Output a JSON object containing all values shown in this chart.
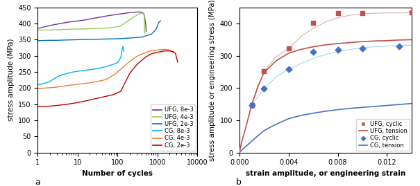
{
  "panel_a": {
    "xlabel": "Number of cycles",
    "ylabel": "stress amplitude (MPa)",
    "label_a": "a",
    "xlim": [
      1,
      10000
    ],
    "ylim": [
      0,
      450
    ],
    "yticks": [
      0,
      50,
      100,
      150,
      200,
      250,
      300,
      350,
      400,
      450
    ],
    "xtick_labels": [
      "1",
      "10",
      "100",
      "1000",
      "10000"
    ],
    "xtick_vals": [
      1,
      10,
      100,
      1000,
      10000
    ],
    "curves": [
      {
        "label": "UFG, 8e-3",
        "color": "#7030a0",
        "x": [
          1,
          1.5,
          2,
          3,
          4,
          5,
          7,
          10,
          15,
          20,
          30,
          50,
          80,
          120,
          180,
          250,
          350,
          420,
          460,
          490,
          510,
          515,
          518
        ],
        "y": [
          385,
          390,
          394,
          398,
          401,
          403,
          406,
          408,
          411,
          414,
          418,
          423,
          427,
          430,
          433,
          435,
          436,
          435,
          428,
          410,
          395,
          385,
          375
        ]
      },
      {
        "label": "UFG, 4e-3",
        "color": "#92d050",
        "x": [
          1,
          1.5,
          2,
          3,
          5,
          8,
          12,
          20,
          30,
          50,
          80,
          120,
          180,
          250,
          350,
          420,
          450,
          465,
          470,
          475
        ],
        "y": [
          380,
          380,
          380,
          381,
          382,
          383,
          383,
          384,
          385,
          386,
          388,
          393,
          408,
          420,
          430,
          433,
          433,
          430,
          395,
          370
        ]
      },
      {
        "label": "UFG, 2e-3",
        "color": "#0070c0",
        "x": [
          1,
          2,
          3,
          5,
          10,
          20,
          50,
          100,
          200,
          400,
          700,
          900,
          1000,
          1050,
          1100,
          1150,
          1200
        ],
        "y": [
          347,
          348,
          348,
          349,
          350,
          351,
          352,
          353,
          355,
          358,
          367,
          380,
          393,
          400,
          405,
          407,
          408
        ]
      },
      {
        "label": "CG, 8e-3",
        "color": "#00b0f0",
        "x": [
          1,
          1.5,
          2,
          2.5,
          3,
          3.5,
          4,
          5,
          6,
          7,
          8,
          10,
          15,
          20,
          30,
          50,
          80,
          100,
          120,
          130,
          135,
          140,
          143
        ],
        "y": [
          210,
          215,
          220,
          228,
          234,
          238,
          241,
          244,
          247,
          249,
          250,
          252,
          255,
          257,
          260,
          266,
          274,
          279,
          295,
          320,
          328,
          325,
          314
        ]
      },
      {
        "label": "CG, 4e-3",
        "color": "#ed7d31",
        "x": [
          1,
          1.5,
          2,
          3,
          5,
          8,
          12,
          20,
          30,
          50,
          80,
          120,
          200,
          300,
          500,
          700,
          1000,
          1500,
          2000,
          2500
        ],
        "y": [
          198,
          200,
          201,
          203,
          207,
          210,
          213,
          216,
          220,
          226,
          240,
          258,
          282,
          298,
          310,
          316,
          318,
          320,
          318,
          310
        ]
      },
      {
        "label": "CG, 2e-3",
        "color": "#c00000",
        "x": [
          1,
          1.5,
          2,
          3,
          5,
          8,
          12,
          20,
          30,
          50,
          80,
          120,
          200,
          300,
          500,
          700,
          1000,
          1500,
          2000,
          2500,
          2800,
          3000,
          3200
        ],
        "y": [
          142,
          143,
          144,
          146,
          149,
          153,
          157,
          163,
          168,
          174,
          180,
          190,
          245,
          272,
          296,
          306,
          311,
          315,
          315,
          313,
          308,
          295,
          280
        ]
      }
    ]
  },
  "panel_b": {
    "xlabel": "strain amplitude, or engineering strain",
    "ylabel": "stress amplitude or engineering stress (MPa)",
    "label_b": "b",
    "xlim": [
      0.0,
      0.014
    ],
    "ylim": [
      0,
      450
    ],
    "yticks": [
      0,
      100,
      200,
      300,
      400
    ],
    "xticks": [
      0.0,
      0.004,
      0.008,
      0.012
    ],
    "tension_curves": [
      {
        "label": "UFG, tension",
        "color": "#c0504d",
        "x": [
          0.0,
          0.0002,
          0.0005,
          0.001,
          0.0015,
          0.002,
          0.003,
          0.004,
          0.005,
          0.006,
          0.007,
          0.008,
          0.009,
          0.01,
          0.011,
          0.012,
          0.013,
          0.014
        ],
        "y": [
          0,
          35,
          75,
          148,
          205,
          248,
          285,
          308,
          320,
          328,
          334,
          338,
          341,
          344,
          346,
          347,
          349,
          350
        ]
      },
      {
        "label": "CG, tension",
        "color": "#4472c4",
        "x": [
          0.0,
          0.0002,
          0.0005,
          0.001,
          0.0015,
          0.002,
          0.003,
          0.004,
          0.005,
          0.006,
          0.007,
          0.008,
          0.009,
          0.01,
          0.011,
          0.012,
          0.013,
          0.014
        ],
        "y": [
          0,
          8,
          18,
          35,
          52,
          68,
          88,
          105,
          115,
          122,
          128,
          133,
          137,
          140,
          143,
          146,
          149,
          152
        ]
      }
    ],
    "fit_curves": [
      {
        "color": "#d9b0b0",
        "x": [
          0.001,
          0.002,
          0.003,
          0.004,
          0.005,
          0.006,
          0.007,
          0.008,
          0.009,
          0.01,
          0.011,
          0.012,
          0.013,
          0.014
        ],
        "y": [
          148,
          252,
          298,
          322,
          360,
          385,
          405,
          418,
          426,
          430,
          432,
          433,
          433,
          434
        ]
      },
      {
        "color": "#aad4e8",
        "x": [
          0.001,
          0.002,
          0.003,
          0.004,
          0.005,
          0.006,
          0.007,
          0.008,
          0.009,
          0.01,
          0.011,
          0.012,
          0.013,
          0.014
        ],
        "y": [
          148,
          198,
          235,
          258,
          276,
          292,
          304,
          313,
          320,
          325,
          328,
          330,
          332,
          333
        ]
      }
    ],
    "scatter": [
      {
        "label": "UFG, cyclic",
        "color": "#c0504d",
        "marker": "s",
        "x": [
          0.001,
          0.002,
          0.004,
          0.006,
          0.008,
          0.01,
          0.014
        ],
        "y": [
          148,
          252,
          322,
          403,
          432,
          432,
          434
        ]
      },
      {
        "label": "CG, cyclic",
        "color": "#4472c4",
        "marker": "D",
        "x": [
          0.001,
          0.002,
          0.004,
          0.006,
          0.008,
          0.01,
          0.013
        ],
        "y": [
          148,
          198,
          258,
          313,
          318,
          322,
          330
        ]
      }
    ]
  }
}
